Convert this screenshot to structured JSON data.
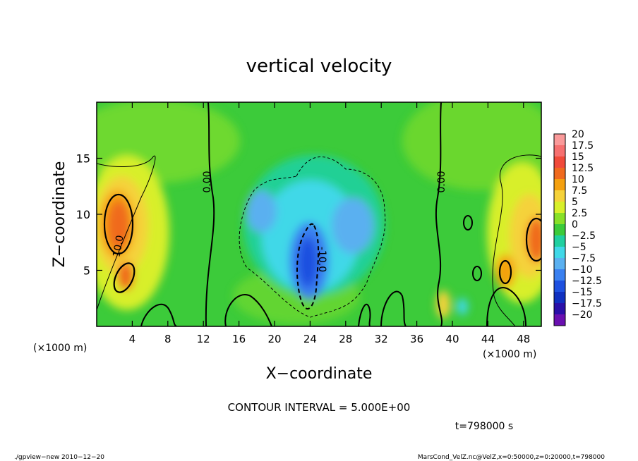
{
  "chart_data": {
    "type": "heatmap",
    "title": "vertical velocity",
    "xlabel": "X−coordinate",
    "ylabel": "Z−coordinate",
    "xunit": "(×1000 m)",
    "yunit": "(×1000 m)",
    "xlim": [
      0,
      50
    ],
    "ylim": [
      0,
      20
    ],
    "xticks": [
      "4",
      "8",
      "12",
      "16",
      "20",
      "24",
      "28",
      "32",
      "36",
      "40",
      "44",
      "48"
    ],
    "yticks": [
      "5",
      "10",
      "15"
    ],
    "contour_labels": [
      "0.00",
      "0.00",
      "10.0",
      "-10.0"
    ],
    "colorbar": {
      "labels": [
        "20",
        "17.5",
        "15",
        "12.5",
        "10",
        "7.5",
        "5",
        "2.5",
        "0",
        "−2.5",
        "−5",
        "−7.5",
        "−10",
        "−12.5",
        "−15",
        "−17.5",
        "−20"
      ],
      "colors": [
        "#fa9a9a",
        "#f67070",
        "#f04a3a",
        "#f06a1e",
        "#f4a010",
        "#f5d23a",
        "#d8ef2a",
        "#88e028",
        "#3ccb3a",
        "#20d0a0",
        "#40d8e8",
        "#5ab0f0",
        "#3a80f0",
        "#1e50e0",
        "#1030c0",
        "#2a10a8",
        "#6a10b0"
      ]
    },
    "annotations": {
      "contour_interval": "CONTOUR INTERVAL = 5.000E+00",
      "time": "t=798000 s",
      "left_footer": "./gpview−new   2010−12−20",
      "right_footer": "MarsCond_VelZ.nc@VelZ,x=0:50000,z=0:20000,t=798000"
    }
  }
}
